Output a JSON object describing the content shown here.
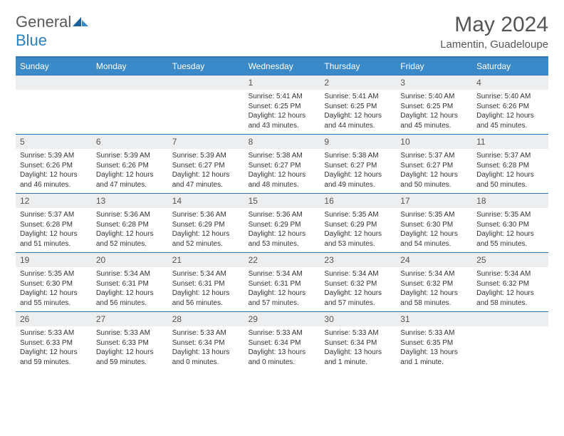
{
  "brand": {
    "part1": "General",
    "part2": "Blue"
  },
  "title": "May 2024",
  "location": "Lamentin, Guadeloupe",
  "colors": {
    "header_bg": "#3a8ac9",
    "border": "#2e78b7",
    "daynum_bg": "#eceeef",
    "text": "#555555",
    "body_text": "#333333"
  },
  "day_names": [
    "Sunday",
    "Monday",
    "Tuesday",
    "Wednesday",
    "Thursday",
    "Friday",
    "Saturday"
  ],
  "weeks": [
    [
      {
        "n": "",
        "lines": []
      },
      {
        "n": "",
        "lines": []
      },
      {
        "n": "",
        "lines": []
      },
      {
        "n": "1",
        "lines": [
          "Sunrise: 5:41 AM",
          "Sunset: 6:25 PM",
          "Daylight: 12 hours",
          "and 43 minutes."
        ]
      },
      {
        "n": "2",
        "lines": [
          "Sunrise: 5:41 AM",
          "Sunset: 6:25 PM",
          "Daylight: 12 hours",
          "and 44 minutes."
        ]
      },
      {
        "n": "3",
        "lines": [
          "Sunrise: 5:40 AM",
          "Sunset: 6:25 PM",
          "Daylight: 12 hours",
          "and 45 minutes."
        ]
      },
      {
        "n": "4",
        "lines": [
          "Sunrise: 5:40 AM",
          "Sunset: 6:26 PM",
          "Daylight: 12 hours",
          "and 45 minutes."
        ]
      }
    ],
    [
      {
        "n": "5",
        "lines": [
          "Sunrise: 5:39 AM",
          "Sunset: 6:26 PM",
          "Daylight: 12 hours",
          "and 46 minutes."
        ]
      },
      {
        "n": "6",
        "lines": [
          "Sunrise: 5:39 AM",
          "Sunset: 6:26 PM",
          "Daylight: 12 hours",
          "and 47 minutes."
        ]
      },
      {
        "n": "7",
        "lines": [
          "Sunrise: 5:39 AM",
          "Sunset: 6:27 PM",
          "Daylight: 12 hours",
          "and 47 minutes."
        ]
      },
      {
        "n": "8",
        "lines": [
          "Sunrise: 5:38 AM",
          "Sunset: 6:27 PM",
          "Daylight: 12 hours",
          "and 48 minutes."
        ]
      },
      {
        "n": "9",
        "lines": [
          "Sunrise: 5:38 AM",
          "Sunset: 6:27 PM",
          "Daylight: 12 hours",
          "and 49 minutes."
        ]
      },
      {
        "n": "10",
        "lines": [
          "Sunrise: 5:37 AM",
          "Sunset: 6:27 PM",
          "Daylight: 12 hours",
          "and 50 minutes."
        ]
      },
      {
        "n": "11",
        "lines": [
          "Sunrise: 5:37 AM",
          "Sunset: 6:28 PM",
          "Daylight: 12 hours",
          "and 50 minutes."
        ]
      }
    ],
    [
      {
        "n": "12",
        "lines": [
          "Sunrise: 5:37 AM",
          "Sunset: 6:28 PM",
          "Daylight: 12 hours",
          "and 51 minutes."
        ]
      },
      {
        "n": "13",
        "lines": [
          "Sunrise: 5:36 AM",
          "Sunset: 6:28 PM",
          "Daylight: 12 hours",
          "and 52 minutes."
        ]
      },
      {
        "n": "14",
        "lines": [
          "Sunrise: 5:36 AM",
          "Sunset: 6:29 PM",
          "Daylight: 12 hours",
          "and 52 minutes."
        ]
      },
      {
        "n": "15",
        "lines": [
          "Sunrise: 5:36 AM",
          "Sunset: 6:29 PM",
          "Daylight: 12 hours",
          "and 53 minutes."
        ]
      },
      {
        "n": "16",
        "lines": [
          "Sunrise: 5:35 AM",
          "Sunset: 6:29 PM",
          "Daylight: 12 hours",
          "and 53 minutes."
        ]
      },
      {
        "n": "17",
        "lines": [
          "Sunrise: 5:35 AM",
          "Sunset: 6:30 PM",
          "Daylight: 12 hours",
          "and 54 minutes."
        ]
      },
      {
        "n": "18",
        "lines": [
          "Sunrise: 5:35 AM",
          "Sunset: 6:30 PM",
          "Daylight: 12 hours",
          "and 55 minutes."
        ]
      }
    ],
    [
      {
        "n": "19",
        "lines": [
          "Sunrise: 5:35 AM",
          "Sunset: 6:30 PM",
          "Daylight: 12 hours",
          "and 55 minutes."
        ]
      },
      {
        "n": "20",
        "lines": [
          "Sunrise: 5:34 AM",
          "Sunset: 6:31 PM",
          "Daylight: 12 hours",
          "and 56 minutes."
        ]
      },
      {
        "n": "21",
        "lines": [
          "Sunrise: 5:34 AM",
          "Sunset: 6:31 PM",
          "Daylight: 12 hours",
          "and 56 minutes."
        ]
      },
      {
        "n": "22",
        "lines": [
          "Sunrise: 5:34 AM",
          "Sunset: 6:31 PM",
          "Daylight: 12 hours",
          "and 57 minutes."
        ]
      },
      {
        "n": "23",
        "lines": [
          "Sunrise: 5:34 AM",
          "Sunset: 6:32 PM",
          "Daylight: 12 hours",
          "and 57 minutes."
        ]
      },
      {
        "n": "24",
        "lines": [
          "Sunrise: 5:34 AM",
          "Sunset: 6:32 PM",
          "Daylight: 12 hours",
          "and 58 minutes."
        ]
      },
      {
        "n": "25",
        "lines": [
          "Sunrise: 5:34 AM",
          "Sunset: 6:32 PM",
          "Daylight: 12 hours",
          "and 58 minutes."
        ]
      }
    ],
    [
      {
        "n": "26",
        "lines": [
          "Sunrise: 5:33 AM",
          "Sunset: 6:33 PM",
          "Daylight: 12 hours",
          "and 59 minutes."
        ]
      },
      {
        "n": "27",
        "lines": [
          "Sunrise: 5:33 AM",
          "Sunset: 6:33 PM",
          "Daylight: 12 hours",
          "and 59 minutes."
        ]
      },
      {
        "n": "28",
        "lines": [
          "Sunrise: 5:33 AM",
          "Sunset: 6:34 PM",
          "Daylight: 13 hours",
          "and 0 minutes."
        ]
      },
      {
        "n": "29",
        "lines": [
          "Sunrise: 5:33 AM",
          "Sunset: 6:34 PM",
          "Daylight: 13 hours",
          "and 0 minutes."
        ]
      },
      {
        "n": "30",
        "lines": [
          "Sunrise: 5:33 AM",
          "Sunset: 6:34 PM",
          "Daylight: 13 hours",
          "and 1 minute."
        ]
      },
      {
        "n": "31",
        "lines": [
          "Sunrise: 5:33 AM",
          "Sunset: 6:35 PM",
          "Daylight: 13 hours",
          "and 1 minute."
        ]
      },
      {
        "n": "",
        "lines": []
      }
    ]
  ]
}
